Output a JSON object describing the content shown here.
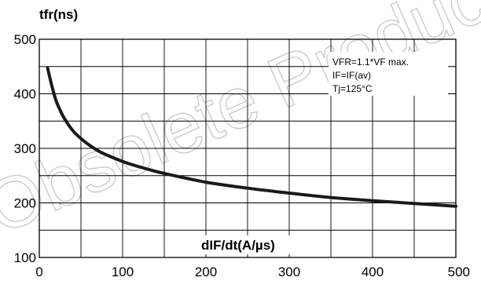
{
  "watermark": "Obsolete Product(s)",
  "chart_data": {
    "type": "line",
    "title": "",
    "xlabel": "dIF/dt(A/µs)",
    "ylabel": "tfr(ns)",
    "xlim": [
      0,
      500
    ],
    "ylim": [
      100,
      500
    ],
    "x_ticks": [
      "0",
      "100",
      "200",
      "300",
      "400",
      "500"
    ],
    "y_ticks": [
      "100",
      "200",
      "300",
      "400",
      "500"
    ],
    "grid": true,
    "annotations": [
      "VFR=1.1*VF max.",
      "IF=IF(av)",
      "Tj=125°C"
    ],
    "series": [
      {
        "color": "#1a1a1a",
        "x": [
          10,
          15,
          20,
          25,
          30,
          40,
          50,
          60,
          75,
          100,
          125,
          150,
          200,
          250,
          300,
          350,
          400,
          450,
          500
        ],
        "y": [
          447,
          415,
          388,
          370,
          355,
          333,
          318,
          306,
          292,
          276,
          264,
          254,
          238,
          227,
          218,
          210,
          204,
          199,
          194
        ]
      }
    ]
  }
}
